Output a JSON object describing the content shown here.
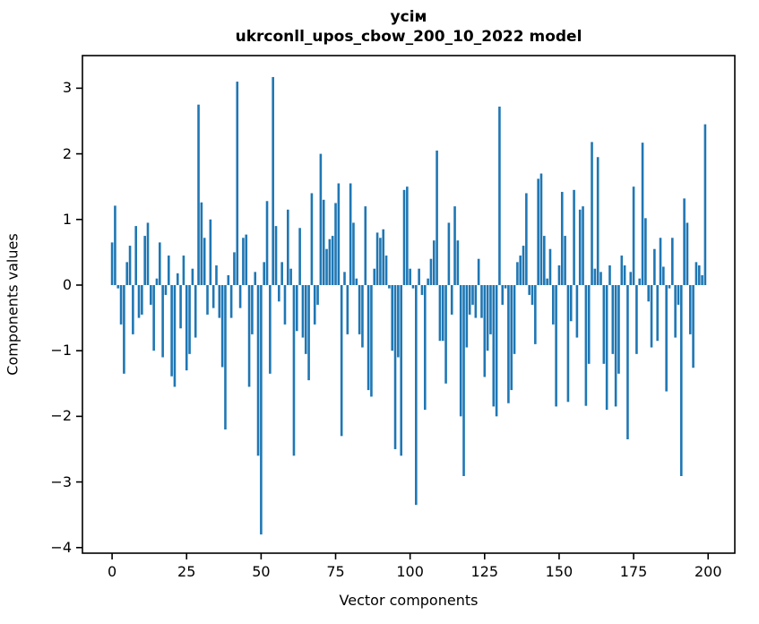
{
  "page": {
    "background": "#ffffff"
  },
  "chart_data": {
    "type": "bar",
    "title_line1": "усім",
    "title_line2": "ukrconll_upos_cbow_200_10_2022 model",
    "xlabel": "Vector components",
    "ylabel": "Components values",
    "bar_color": "#1f77b4",
    "axis_color": "#000000",
    "grid": false,
    "legend_position": "none",
    "x_start": 0,
    "x_tick_labels": [
      0,
      25,
      50,
      75,
      100,
      125,
      150,
      175,
      200
    ],
    "y_tick_labels": [
      3,
      2,
      1,
      0,
      -1,
      -2,
      -3,
      -4
    ],
    "xlim": [
      -9.95,
      208.95
    ],
    "ylim": [
      -4.085,
      3.497
    ],
    "values": [
      0.65,
      1.21,
      -0.05,
      -0.6,
      -1.35,
      0.35,
      0.6,
      -0.75,
      0.9,
      -0.5,
      -0.45,
      0.75,
      0.95,
      -0.3,
      -1.0,
      0.1,
      0.65,
      -1.1,
      -0.15,
      0.45,
      -1.39,
      -1.55,
      0.18,
      -0.66,
      0.45,
      -1.3,
      -1.05,
      0.25,
      -0.8,
      2.75,
      1.26,
      0.72,
      -0.45,
      1.0,
      -0.35,
      0.3,
      -0.5,
      -1.25,
      -2.2,
      0.15,
      -0.5,
      0.5,
      3.1,
      -0.35,
      0.72,
      0.77,
      -1.55,
      -0.75,
      0.2,
      -2.6,
      -3.8,
      0.35,
      1.28,
      -1.35,
      3.17,
      0.9,
      -0.25,
      0.35,
      -0.6,
      1.15,
      0.25,
      -2.6,
      -0.7,
      0.87,
      -0.8,
      -1.05,
      -1.45,
      1.4,
      -0.6,
      -0.3,
      2.0,
      1.3,
      0.55,
      0.7,
      0.75,
      1.25,
      1.55,
      -2.3,
      0.2,
      -0.75,
      1.55,
      0.95,
      0.1,
      -0.75,
      -0.95,
      1.2,
      -1.6,
      -1.7,
      0.25,
      0.8,
      0.72,
      0.85,
      0.45,
      -0.05,
      -1.0,
      -2.5,
      -1.1,
      -2.6,
      1.45,
      1.5,
      0.25,
      -0.05,
      -3.35,
      0.25,
      -0.15,
      -1.9,
      0.1,
      0.4,
      0.68,
      2.05,
      -0.85,
      -0.85,
      -1.5,
      0.95,
      -0.45,
      1.2,
      0.68,
      -2.0,
      -2.91,
      -0.95,
      -0.45,
      -0.3,
      -0.5,
      0.4,
      -0.5,
      -1.4,
      -1.0,
      -0.75,
      -1.85,
      -2.0,
      2.72,
      -0.3,
      -0.05,
      -1.8,
      -1.6,
      -1.05,
      0.35,
      0.45,
      0.6,
      1.4,
      -0.15,
      -0.3,
      -0.9,
      1.62,
      1.7,
      0.75,
      0.1,
      0.55,
      -0.6,
      -1.85,
      0.3,
      1.42,
      0.75,
      -1.78,
      -0.55,
      1.45,
      -0.8,
      1.15,
      1.2,
      -1.84,
      -1.2,
      2.18,
      0.25,
      1.95,
      0.2,
      -1.2,
      -1.9,
      0.3,
      -1.05,
      -1.85,
      -1.35,
      0.45,
      0.3,
      -2.35,
      0.2,
      1.5,
      -1.05,
      0.1,
      2.17,
      1.02,
      -0.25,
      -0.95,
      0.55,
      -0.85,
      0.72,
      0.28,
      -1.62,
      -0.05,
      0.72,
      -0.8,
      -0.3,
      -2.91,
      1.32,
      0.95,
      -0.75,
      -1.26,
      0.35,
      0.3,
      0.15,
      2.45
    ]
  }
}
